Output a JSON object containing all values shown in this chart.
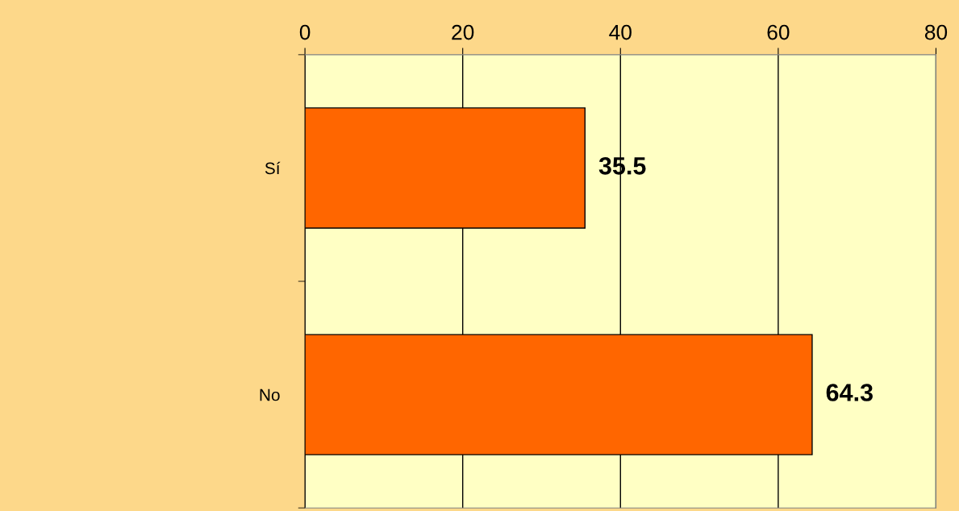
{
  "chart_data": {
    "type": "bar",
    "orientation": "horizontal",
    "categories": [
      "Sí",
      "No"
    ],
    "values": [
      35.5,
      64.3
    ],
    "color": "#ff6600",
    "xlim": [
      0,
      80
    ],
    "xticks": [
      0,
      20,
      40,
      60,
      80
    ],
    "grid": "x",
    "data_labels": true
  }
}
